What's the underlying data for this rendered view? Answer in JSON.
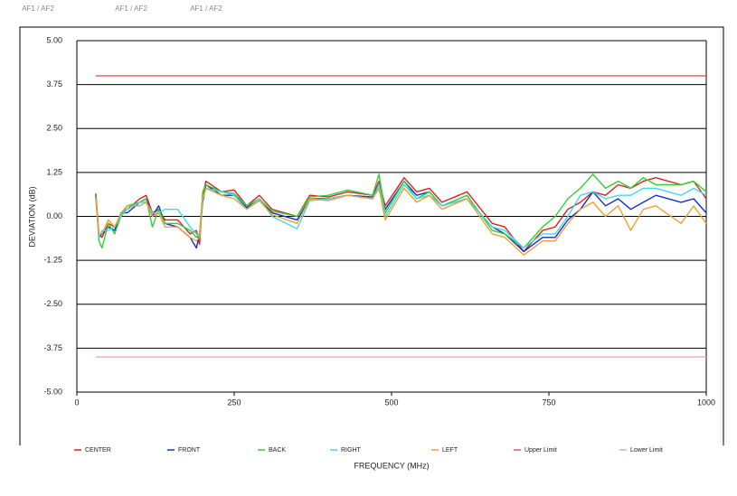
{
  "tabs": [
    "AF1 / AF2",
    "AF1 / AF2",
    "AF1 / AF2"
  ],
  "chart_data": {
    "type": "line",
    "xlabel": "FREQUENCY (MHz)",
    "ylabel": "DEVIATION (dB)",
    "x": [
      30,
      35,
      40,
      50,
      60,
      70,
      80,
      100,
      110,
      120,
      130,
      140,
      160,
      180,
      190,
      195,
      200,
      205,
      230,
      250,
      270,
      290,
      310,
      350,
      370,
      400,
      430,
      470,
      480,
      490,
      520,
      540,
      560,
      580,
      620,
      660,
      680,
      710,
      740,
      760,
      780,
      800,
      820,
      840,
      860,
      880,
      900,
      920,
      960,
      980,
      1000
    ],
    "series": [
      {
        "name": "CENTER",
        "color": "#e02020",
        "values": [
          0.65,
          -0.5,
          -0.6,
          -0.2,
          -0.3,
          0.0,
          0.2,
          0.5,
          0.6,
          0.1,
          0.2,
          -0.1,
          -0.1,
          -0.5,
          -0.4,
          -0.8,
          0.6,
          1.0,
          0.7,
          0.75,
          0.3,
          0.6,
          0.2,
          0.0,
          0.6,
          0.55,
          0.7,
          0.6,
          1.0,
          0.3,
          1.1,
          0.7,
          0.8,
          0.4,
          0.7,
          -0.2,
          -0.3,
          -1.0,
          -0.4,
          -0.3,
          0.2,
          0.4,
          0.7,
          0.6,
          0.9,
          0.8,
          1.0,
          1.1,
          0.9,
          1.0,
          0.5
        ]
      },
      {
        "name": "FRONT",
        "color": "#1030d0",
        "values": [
          0.6,
          -0.6,
          -0.5,
          -0.3,
          -0.4,
          0.1,
          0.1,
          0.4,
          0.5,
          0.0,
          0.3,
          -0.2,
          -0.3,
          -0.6,
          -0.9,
          -0.5,
          0.4,
          0.9,
          0.6,
          0.6,
          0.25,
          0.5,
          0.1,
          -0.1,
          0.5,
          0.5,
          0.6,
          0.55,
          0.9,
          0.2,
          1.0,
          0.6,
          0.7,
          0.3,
          0.5,
          -0.3,
          -0.5,
          -1.0,
          -0.6,
          -0.6,
          -0.1,
          0.2,
          0.7,
          0.3,
          0.5,
          0.2,
          0.4,
          0.6,
          0.4,
          0.5,
          0.1
        ]
      },
      {
        "name": "BACK",
        "color": "#30d030",
        "values": [
          0.6,
          -0.7,
          -0.9,
          -0.2,
          -0.5,
          0.0,
          0.3,
          0.4,
          0.5,
          -0.3,
          0.2,
          -0.2,
          -0.2,
          -0.4,
          -0.6,
          -0.5,
          0.7,
          0.9,
          0.7,
          0.65,
          0.3,
          0.5,
          0.15,
          0.0,
          0.55,
          0.6,
          0.75,
          0.6,
          1.2,
          0.1,
          1.0,
          0.5,
          0.7,
          0.3,
          0.6,
          -0.4,
          -0.5,
          -0.9,
          -0.3,
          0.0,
          0.5,
          0.8,
          1.2,
          0.8,
          1.0,
          0.8,
          1.1,
          0.9,
          0.9,
          1.0,
          0.7
        ]
      },
      {
        "name": "RIGHT",
        "color": "#40d8f0",
        "values": [
          0.5,
          -0.6,
          -0.4,
          -0.4,
          -0.3,
          0.0,
          0.2,
          0.4,
          0.4,
          0.1,
          0.1,
          0.2,
          0.2,
          -0.3,
          -0.5,
          -0.6,
          0.5,
          0.8,
          0.7,
          0.6,
          0.2,
          0.5,
          0.0,
          -0.35,
          0.45,
          0.5,
          0.6,
          0.5,
          0.9,
          0.0,
          0.9,
          0.5,
          0.6,
          0.3,
          0.5,
          -0.3,
          -0.4,
          -0.9,
          -0.5,
          -0.5,
          0.0,
          0.6,
          0.7,
          0.5,
          0.6,
          0.6,
          0.8,
          0.8,
          0.6,
          0.8,
          0.6
        ]
      },
      {
        "name": "LEFT",
        "color": "#f0a030",
        "values": [
          0.5,
          -0.5,
          -0.5,
          -0.1,
          -0.3,
          0.1,
          0.3,
          0.3,
          0.4,
          0.0,
          0.1,
          -0.3,
          -0.3,
          -0.6,
          -0.7,
          -0.6,
          0.5,
          0.8,
          0.6,
          0.5,
          0.2,
          0.45,
          0.05,
          -0.2,
          0.5,
          0.45,
          0.6,
          0.5,
          0.8,
          -0.1,
          0.8,
          0.4,
          0.6,
          0.2,
          0.5,
          -0.5,
          -0.6,
          -1.1,
          -0.7,
          -0.7,
          -0.2,
          0.2,
          0.4,
          0.0,
          0.3,
          -0.4,
          0.2,
          0.3,
          -0.2,
          0.3,
          -0.2
        ]
      },
      {
        "name": "Upper Limit",
        "color": "#e05a5a",
        "x": [
          30,
          1000
        ],
        "values": [
          4,
          4
        ]
      },
      {
        "name": "Lower Limit",
        "color": "#f0a8a8",
        "x": [
          30,
          1000
        ],
        "values": [
          -4,
          -4
        ]
      }
    ],
    "xlim": [
      0,
      1000
    ],
    "xticks": [
      0,
      250,
      500,
      750,
      1000
    ],
    "ylim": [
      -5,
      5
    ],
    "yticks": [
      {
        "value": -5,
        "label": "-5.00"
      },
      {
        "value": -3.75,
        "label": "-3.75"
      },
      {
        "value": -2.5,
        "label": "-2.50"
      },
      {
        "value": -1.25,
        "label": "-1.25"
      },
      {
        "value": 0,
        "label": "0.00"
      },
      {
        "value": 1.25,
        "label": "1.25"
      },
      {
        "value": 2.5,
        "label": "2.50"
      },
      {
        "value": 3.75,
        "label": "3.75"
      },
      {
        "value": 5,
        "label": "5.00"
      }
    ],
    "grid": true
  }
}
